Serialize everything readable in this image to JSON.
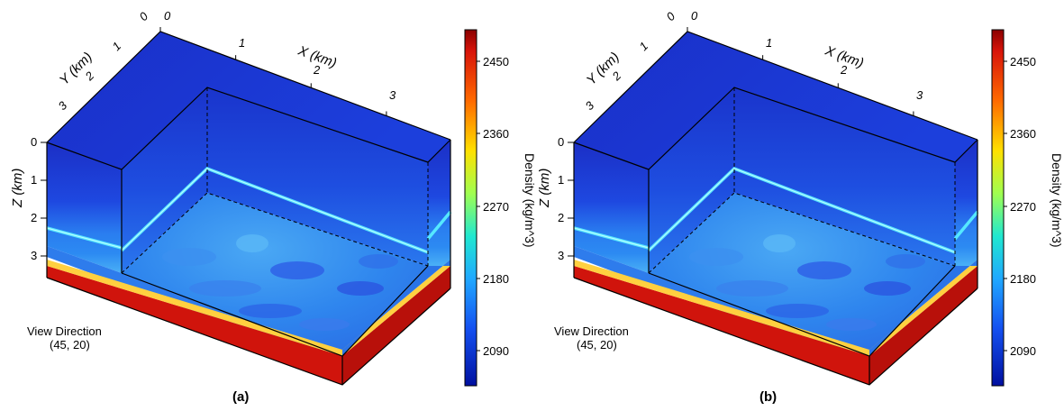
{
  "colors": {
    "deep_blue": "#1a2fd0",
    "mid_blue": "#1e5fe8",
    "light_blue": "#3a9cf0",
    "cyan_band": "#55e8ff",
    "bottom_red": "#d0140c",
    "outline": "#000000"
  },
  "panels": [
    {
      "caption": "(a)",
      "x_axis_title": "X (km)",
      "y_axis_title": "Y (km)",
      "z_axis_title": "Z (km)",
      "x_ticks": [
        "0",
        "1",
        "2",
        "3"
      ],
      "y_ticks": [
        "0",
        "1",
        "2",
        "3"
      ],
      "z_ticks": [
        "0",
        "1",
        "2",
        "3"
      ],
      "view_label": "View Direction",
      "view_value": "(45, 20)",
      "colorbar_title": "Density (kg/m^3)",
      "colorbar_ticks": [
        "2450",
        "2360",
        "2270",
        "2180",
        "2090"
      ]
    },
    {
      "caption": "(b)",
      "x_axis_title": "X (km)",
      "y_axis_title": "Y (km)",
      "z_axis_title": "Z (km)",
      "x_ticks": [
        "0",
        "1",
        "2",
        "3"
      ],
      "y_ticks": [
        "0",
        "1",
        "2",
        "3"
      ],
      "z_ticks": [
        "0",
        "1",
        "2",
        "3"
      ],
      "view_label": "View Direction",
      "view_value": "(45, 20)",
      "colorbar_title": "Density (kg/m^3)",
      "colorbar_ticks": [
        "2450",
        "2360",
        "2270",
        "2180",
        "2090"
      ]
    }
  ]
}
